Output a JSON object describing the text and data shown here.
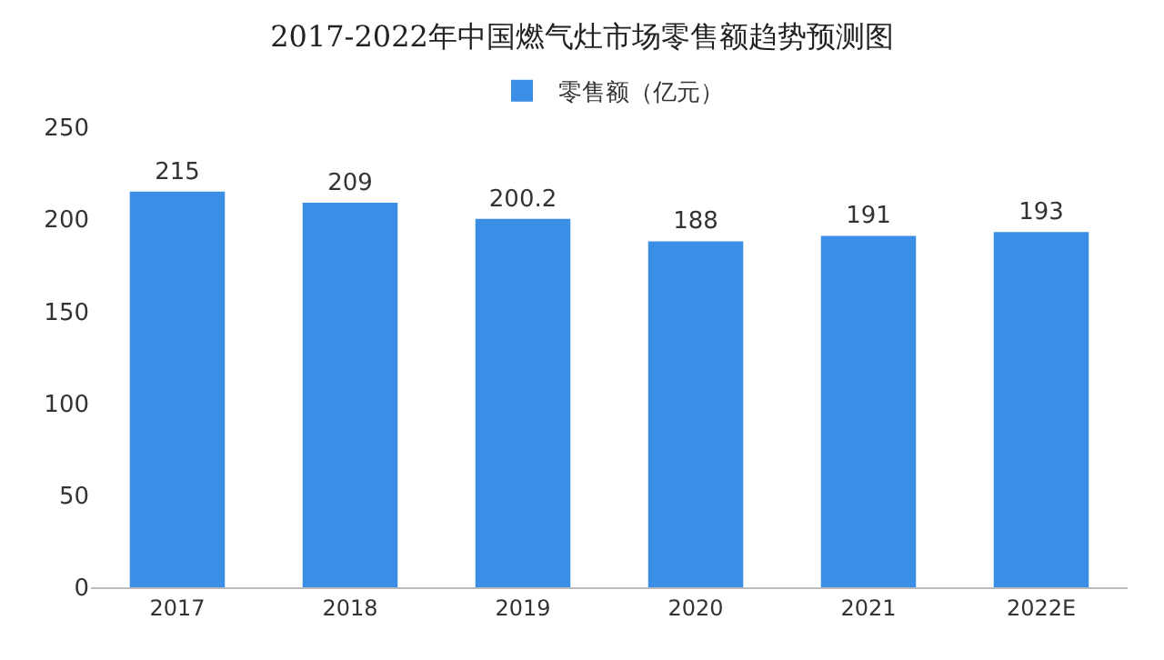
{
  "chart_data": {
    "type": "bar",
    "title": "2017-2022年中国燃气灶市场零售额趋势预测图",
    "categories": [
      "2017",
      "2018",
      "2019",
      "2020",
      "2021",
      "2022E"
    ],
    "series": [
      {
        "name": "零售额（亿元）",
        "color": "#3a8ee6",
        "values": [
          215,
          209,
          200.2,
          188,
          191,
          193
        ]
      }
    ],
    "ylim": [
      0,
      250
    ],
    "yticks": [
      0,
      50,
      100,
      150,
      200,
      250
    ],
    "grid": false,
    "legend": "top",
    "data_labels": true
  }
}
